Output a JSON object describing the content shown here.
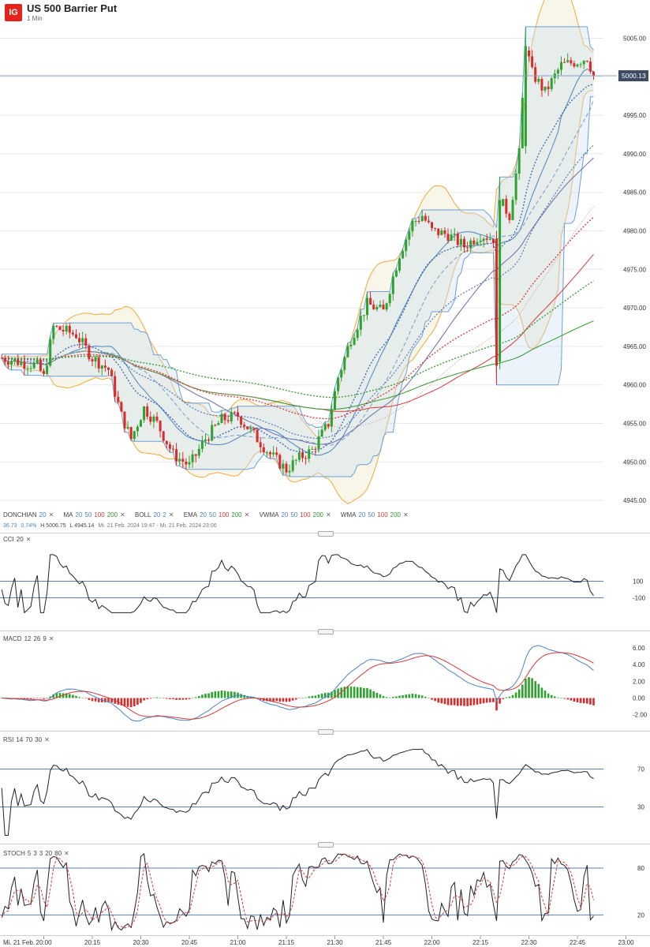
{
  "header": {
    "logo": "IG",
    "title": "US 500 Barrier Put",
    "subtitle": "1 Min"
  },
  "colors": {
    "bull": "#2ea22e",
    "bear": "#d92b2b",
    "blue": "#4a84c4",
    "orange": "#f2a93b",
    "green": "#2e9a2e",
    "red": "#d63b3b",
    "price_line": "#8aa0c8"
  },
  "price_panel": {
    "last_price": "5000.13",
    "y_ticks": [
      "5005.00",
      "5000.00",
      "4995.00",
      "4990.00",
      "4985.00",
      "4980.00",
      "4975.00",
      "4970.00",
      "4965.00",
      "4960.00",
      "4955.00",
      "4950.00",
      "4945.00"
    ]
  },
  "legend": {
    "donchian": {
      "name": "DONCHIAN",
      "p1": "20"
    },
    "ma": {
      "name": "MA",
      "p1": "20",
      "p2": "50",
      "p3": "100",
      "p4": "200"
    },
    "boll": {
      "name": "BOLL",
      "p1": "20",
      "p2": "2"
    },
    "ema": {
      "name": "EMA",
      "p1": "20",
      "p2": "50",
      "p3": "100",
      "p4": "200"
    },
    "vwma": {
      "name": "VWMA",
      "p1": "20",
      "p2": "50",
      "p3": "100",
      "p4": "200"
    },
    "wma": {
      "name": "WMA",
      "p1": "20",
      "p2": "50",
      "p3": "100",
      "p4": "200"
    },
    "close_x": "✕"
  },
  "stats": {
    "change": "36.73",
    "pct": "0.74%",
    "high": "H 5006.75",
    "low": "L 4945.14",
    "range": "Mi. 21 Feb. 2024 19:47 - Mi. 21 Feb. 2024 23:06"
  },
  "cci": {
    "label": "CCI",
    "p1": "20",
    "ticks": [
      "100",
      "-100"
    ]
  },
  "macd": {
    "label": "MACD",
    "p1": "12",
    "p2": "26",
    "p3": "9",
    "ticks": [
      "6.00",
      "4.00",
      "2.00",
      "0.00",
      "-2.00"
    ]
  },
  "rsi": {
    "label": "RSI",
    "p1": "14",
    "p2": "70",
    "p3": "30",
    "ticks": [
      "70",
      "30"
    ]
  },
  "stoch": {
    "label": "STOCH",
    "p1": "5",
    "p2": "3",
    "p3": "3",
    "p4": "20",
    "p5": "80",
    "ticks": [
      "80",
      "20"
    ]
  },
  "time_axis": {
    "date": "Mi. 21 Feb.",
    "ticks": [
      "20:00",
      "20:15",
      "20:30",
      "20:45",
      "21:00",
      "21:15",
      "21:30",
      "21:45",
      "22:00",
      "22:15",
      "22:30",
      "22:45",
      "23:00"
    ]
  },
  "chart_data": {
    "type": "candlestick",
    "symbol": "US 500 Barrier Put",
    "interval": "1 Min",
    "x_range": [
      "19:47",
      "23:06"
    ],
    "y_range": [
      4943.0,
      5007.5
    ],
    "close_anchors": [
      [
        "19:47",
        4963.5
      ],
      [
        "19:52",
        4963.0
      ],
      [
        "19:58",
        4962.5
      ],
      [
        "20:00",
        4961.0
      ],
      [
        "20:03",
        4967.5
      ],
      [
        "20:10",
        4966.5
      ],
      [
        "20:15",
        4963.5
      ],
      [
        "20:20",
        4962.0
      ],
      [
        "20:24",
        4956.0
      ],
      [
        "20:27",
        4953.0
      ],
      [
        "20:31",
        4957.0
      ],
      [
        "20:35",
        4955.0
      ],
      [
        "20:40",
        4951.0
      ],
      [
        "20:45",
        4949.5
      ],
      [
        "20:50",
        4953.0
      ],
      [
        "20:55",
        4955.5
      ],
      [
        "21:00",
        4956.0
      ],
      [
        "21:05",
        4953.5
      ],
      [
        "21:10",
        4951.0
      ],
      [
        "21:15",
        4949.0
      ],
      [
        "21:19",
        4950.5
      ],
      [
        "21:23",
        4951.5
      ],
      [
        "21:28",
        4955.0
      ],
      [
        "21:31",
        4961.0
      ],
      [
        "21:35",
        4966.0
      ],
      [
        "21:40",
        4970.5
      ],
      [
        "21:45",
        4969.5
      ],
      [
        "21:50",
        4977.0
      ],
      [
        "21:54",
        4981.0
      ],
      [
        "21:57",
        4982.0
      ],
      [
        "22:00",
        4980.0
      ],
      [
        "22:05",
        4979.5
      ],
      [
        "22:10",
        4978.0
      ],
      [
        "22:15",
        4979.5
      ],
      [
        "22:19",
        4979.0
      ],
      [
        "22:20",
        4965.0
      ],
      [
        "22:21",
        4984.0
      ],
      [
        "22:24",
        4982.0
      ],
      [
        "22:27",
        4990.0
      ],
      [
        "22:29",
        5004.0
      ],
      [
        "22:31",
        5000.5
      ],
      [
        "22:35",
        4998.0
      ],
      [
        "22:40",
        5001.5
      ],
      [
        "22:45",
        5002.0
      ],
      [
        "22:48",
        5002.5
      ],
      [
        "22:50",
        5000.13
      ]
    ],
    "highlighted_ranges": {
      "high": 5006.75,
      "low": 4945.14,
      "change": 36.73,
      "change_pct": 0.74
    }
  }
}
